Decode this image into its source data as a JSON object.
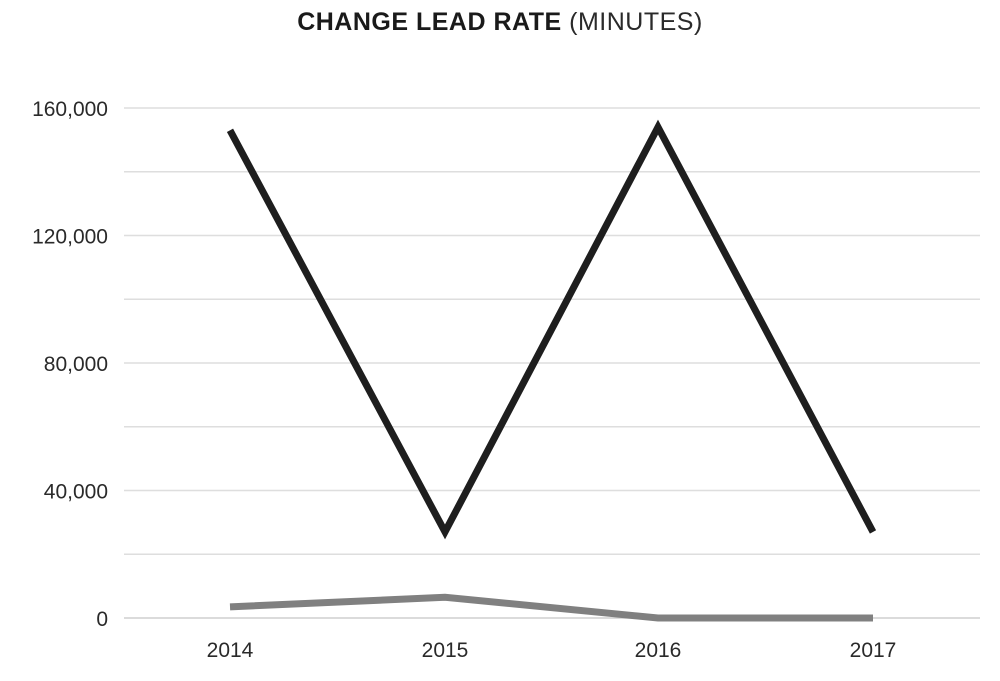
{
  "chart_data": {
    "type": "line",
    "title": "CHANGE LEAD RATE",
    "subtitle": "(MINUTES)",
    "xlabel": "",
    "ylabel": "",
    "categories": [
      "2014",
      "2015",
      "2016",
      "2017"
    ],
    "ylim": [
      0,
      160000
    ],
    "yticks": [
      0,
      40000,
      80000,
      120000,
      160000
    ],
    "ytick_labels": [
      "0",
      "40,000",
      "80,000",
      "120,000",
      "160,000"
    ],
    "grid": true,
    "legend": "none",
    "series": [
      {
        "color": "#1e1e1e",
        "values": [
          153000,
          27000,
          154000,
          27000
        ]
      },
      {
        "color": "#808080",
        "values": [
          3500,
          6500,
          0,
          0
        ]
      }
    ]
  }
}
